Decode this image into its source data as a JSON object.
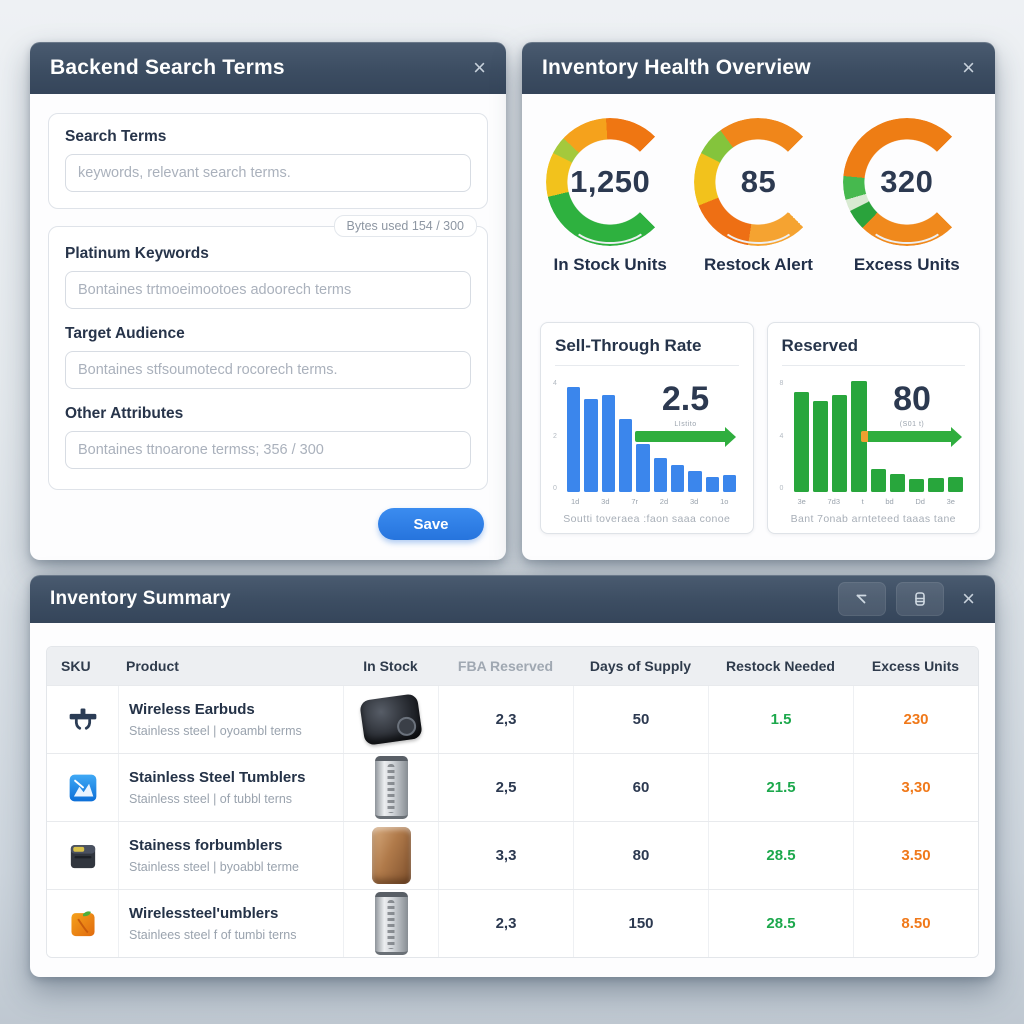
{
  "backend": {
    "title": "Backend Search Terms",
    "close_label": "×",
    "search_label": "Search Terms",
    "search_placeholder": "keywords, relevant search terms.",
    "bytes_badge": "Bytes used 154 / 300",
    "platinum_label": "Platinum Keywords",
    "platinum_placeholder": "Bontaines trtmoeimootoes adoorech terms",
    "audience_label": "Target Audience",
    "audience_placeholder": "Bontaines stfsoumotecd rocorech terms.",
    "other_label": "Other Attributes",
    "other_placeholder": "Bontaines ttnoarone termss; 356 / 300",
    "save_label": "Save"
  },
  "health": {
    "title": "Inventory Health Overview",
    "close_label": "×",
    "gauges": [
      {
        "value": "1,250",
        "label": "In Stock Units",
        "segments": [
          {
            "c": "#2eb13f",
            "t": 0.45
          },
          {
            "c": "#f2c21c",
            "t": 0.6
          },
          {
            "c": "#a4c93c",
            "t": 0.66
          },
          {
            "c": "#f5a21c",
            "t": 0.82
          },
          {
            "c": "#ef7612",
            "t": 1
          }
        ]
      },
      {
        "value": "85",
        "label": "Restock Alert",
        "segments": [
          {
            "c": "#f5a331",
            "t": 0.2
          },
          {
            "c": "#ee6f14",
            "t": 0.42
          },
          {
            "c": "#f2c21c",
            "t": 0.6
          },
          {
            "c": "#84c43c",
            "t": 0.7
          },
          {
            "c": "#f0861a",
            "t": 1
          }
        ]
      },
      {
        "value": "320",
        "label": "Excess Units",
        "segments": [
          {
            "c": "#f0891c",
            "t": 0.33
          },
          {
            "c": "#2aa33c",
            "t": 0.4
          },
          {
            "c": "#d8ead2",
            "t": 0.44
          },
          {
            "c": "#46b94e",
            "t": 0.52
          },
          {
            "c": "#ee7d14",
            "t": 1
          }
        ]
      }
    ],
    "cards": [
      {
        "title": "Sell-Through Rate",
        "headline": "2.5",
        "arrow_caption": "LIstito",
        "arrow_start": "",
        "bar_color": "#3b86ec",
        "bars": [
          92,
          82,
          85,
          64,
          42,
          30,
          24,
          18,
          13,
          15
        ],
        "yticks": [
          "4",
          "2",
          "0"
        ],
        "xticks": [
          "1d",
          "3d",
          "7r",
          "2d",
          "3d",
          "1o"
        ],
        "caption": "Soutti toveraea :faon saaa conoe"
      },
      {
        "title": "Reserved",
        "headline": "80",
        "arrow_caption": "(S01 t)",
        "arrow_start": "#f0a030",
        "bar_color": "#28a63c",
        "bars": [
          88,
          80,
          85,
          97,
          20,
          16,
          11,
          12,
          13
        ],
        "yticks": [
          "8",
          "4",
          "0"
        ],
        "xticks": [
          "3e",
          "7d3",
          "t",
          "bd",
          "Dd",
          "3e"
        ],
        "caption": "Bant 7onab arnteteed taaas tane"
      }
    ]
  },
  "summary": {
    "title": "Inventory Summary",
    "close_label": "×",
    "toolbar_icons": [
      "cursor-arrow-icon",
      "database-icon"
    ],
    "columns": [
      "SKU",
      "Product",
      "In Stock",
      "FBA Reserved",
      "Days of Supply",
      "Restock Needed",
      "Excess Units"
    ],
    "muted_column_index": 3,
    "rows": [
      {
        "sku_icon": "earbuds-icon",
        "name": "Wireless Earbuds",
        "sub": "Stainless steel | oyoambl terms",
        "image": "earbuds",
        "fba": "2,3",
        "days": "50",
        "restock": "1.5",
        "excess": "230"
      },
      {
        "sku_icon": "chart-icon",
        "name": "Stainless Steel Tumblers",
        "sub": "Stainless steel | of tubbl terns",
        "image": "tumbler-steel",
        "fba": "2,5",
        "days": "60",
        "restock": "21.5",
        "excess": "3,30"
      },
      {
        "sku_icon": "wallet-icon",
        "name": "Stainess forbumblers",
        "sub": "Stainless steel | byoabbl terme",
        "image": "tumbler-brown",
        "fba": "3,3",
        "days": "80",
        "restock": "28.5",
        "excess": "3.50"
      },
      {
        "sku_icon": "bag-icon",
        "name": "Wirelessteel'umblers",
        "sub": "Stainlees steel f of tumbi terns",
        "image": "tumbler-steel",
        "fba": "2,3",
        "days": "150",
        "restock": "28.5",
        "excess": "8.50"
      }
    ],
    "value_colors": {
      "restock": "#1ca84c",
      "excess": "#f0791a"
    }
  },
  "chart_data": [
    {
      "type": "gauge",
      "title": "In Stock Units",
      "value": 1250
    },
    {
      "type": "gauge",
      "title": "Restock Alert",
      "value": 85
    },
    {
      "type": "gauge",
      "title": "Excess Units",
      "value": 320
    },
    {
      "type": "bar",
      "title": "Sell-Through Rate",
      "headline": 2.5,
      "color": "#3b86ec",
      "values": [
        92,
        82,
        85,
        64,
        42,
        30,
        24,
        18,
        13,
        15
      ],
      "note": "relative bar heights %, axis unlabeled in source"
    },
    {
      "type": "bar",
      "title": "Reserved",
      "headline": 80,
      "color": "#28a63c",
      "values": [
        88,
        80,
        85,
        97,
        20,
        16,
        11,
        12,
        13
      ],
      "note": "relative bar heights %, axis unlabeled in source"
    }
  ]
}
